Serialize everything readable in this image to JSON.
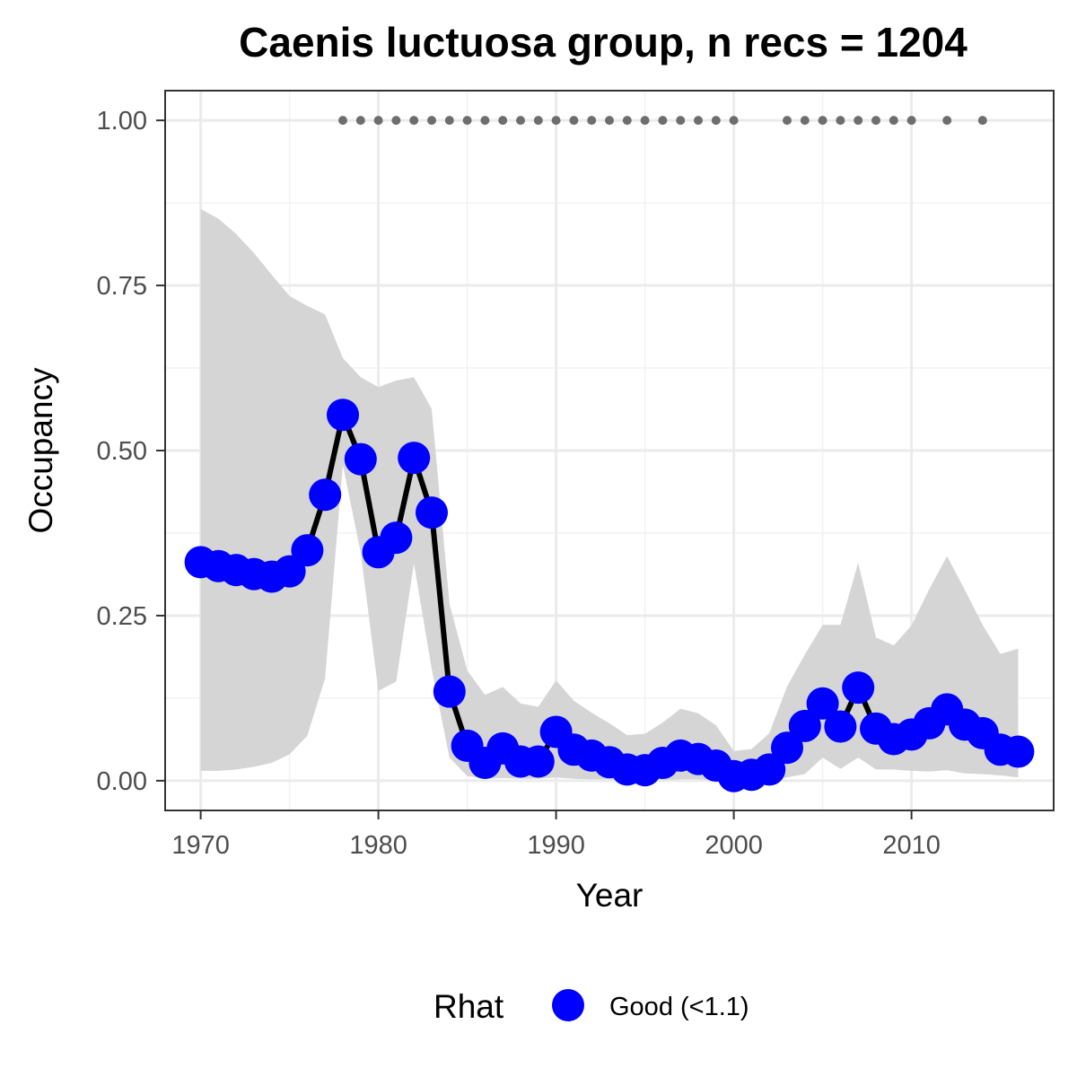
{
  "chart_data": {
    "type": "line",
    "title": "Caenis luctuosa group, n recs = 1204",
    "xlabel": "Year",
    "ylabel": "Occupancy",
    "xlim": [
      1968,
      2018
    ],
    "ylim": [
      -0.045,
      1.045
    ],
    "x_ticks": [
      1970,
      1980,
      1990,
      2000,
      2010
    ],
    "x_tick_labels": [
      "1970",
      "1980",
      "1990",
      "2000",
      "2010"
    ],
    "y_ticks": [
      0,
      0.25,
      0.5,
      0.75,
      1.0
    ],
    "y_tick_labels": [
      "0.00",
      "0.25",
      "0.50",
      "0.75",
      "1.00"
    ],
    "grid": true,
    "legend": {
      "title": "Rhat",
      "position": "bottom",
      "entries": [
        {
          "label": "Good (<1.1)",
          "color": "#0000ff"
        }
      ]
    },
    "colors": {
      "points": "#0000ff",
      "line": "#000000",
      "ribbon": "#d5d5d5",
      "record_dots": "#6e6e6e"
    },
    "series": [
      {
        "name": "Good (<1.1)",
        "x": [
          1970,
          1971,
          1972,
          1973,
          1974,
          1975,
          1976,
          1977,
          1978,
          1979,
          1980,
          1981,
          1982,
          1983,
          1984,
          1985,
          1986,
          1987,
          1988,
          1989,
          1990,
          1991,
          1992,
          1993,
          1994,
          1995,
          1996,
          1997,
          1998,
          1999,
          2000,
          2001,
          2002,
          2003,
          2004,
          2005,
          2006,
          2007,
          2008,
          2009,
          2010,
          2011,
          2012,
          2013,
          2014,
          2015,
          2016
        ],
        "y": [
          0.331,
          0.325,
          0.319,
          0.313,
          0.309,
          0.317,
          0.349,
          0.433,
          0.554,
          0.487,
          0.346,
          0.368,
          0.489,
          0.406,
          0.135,
          0.053,
          0.027,
          0.049,
          0.029,
          0.029,
          0.074,
          0.047,
          0.038,
          0.028,
          0.017,
          0.016,
          0.027,
          0.038,
          0.033,
          0.023,
          0.007,
          0.009,
          0.017,
          0.05,
          0.083,
          0.117,
          0.082,
          0.141,
          0.079,
          0.063,
          0.07,
          0.087,
          0.108,
          0.085,
          0.072,
          0.047,
          0.044
        ]
      }
    ],
    "ribbon": {
      "x": [
        1970,
        1971,
        1972,
        1973,
        1974,
        1975,
        1976,
        1977,
        1978,
        1979,
        1980,
        1981,
        1982,
        1983,
        1984,
        1985,
        1986,
        1987,
        1988,
        1989,
        1990,
        1991,
        1992,
        1993,
        1994,
        1995,
        1996,
        1997,
        1998,
        1999,
        2000,
        2001,
        2002,
        2003,
        2004,
        2005,
        2006,
        2007,
        2008,
        2009,
        2010,
        2011,
        2012,
        2013,
        2014,
        2015,
        2016
      ],
      "lower": [
        0.015,
        0.015,
        0.017,
        0.021,
        0.027,
        0.04,
        0.068,
        0.155,
        0.478,
        0.346,
        0.136,
        0.15,
        0.329,
        0.169,
        0.035,
        0.007,
        0.003,
        0.004,
        0.003,
        0.003,
        0.005,
        0.003,
        0.002,
        0.002,
        0.001,
        0.001,
        0.001,
        0.002,
        0.002,
        0.001,
        0.0,
        0.0,
        0.001,
        0.005,
        0.01,
        0.035,
        0.018,
        0.035,
        0.017,
        0.017,
        0.015,
        0.014,
        0.016,
        0.011,
        0.01,
        0.008,
        0.005
      ],
      "upper": [
        0.866,
        0.851,
        0.828,
        0.799,
        0.766,
        0.734,
        0.719,
        0.706,
        0.64,
        0.611,
        0.596,
        0.606,
        0.611,
        0.563,
        0.268,
        0.167,
        0.13,
        0.142,
        0.117,
        0.112,
        0.152,
        0.121,
        0.103,
        0.087,
        0.069,
        0.071,
        0.088,
        0.109,
        0.102,
        0.084,
        0.045,
        0.048,
        0.072,
        0.143,
        0.191,
        0.236,
        0.236,
        0.33,
        0.217,
        0.205,
        0.235,
        0.29,
        0.34,
        0.289,
        0.236,
        0.192,
        0.2
      ]
    },
    "records": {
      "y": 1.0,
      "years": [
        1978,
        1979,
        1980,
        1981,
        1982,
        1983,
        1984,
        1985,
        1986,
        1987,
        1988,
        1989,
        1990,
        1991,
        1992,
        1993,
        1994,
        1995,
        1996,
        1997,
        1998,
        1999,
        2000,
        2003,
        2004,
        2005,
        2006,
        2007,
        2008,
        2009,
        2010,
        2012,
        2014
      ]
    }
  }
}
